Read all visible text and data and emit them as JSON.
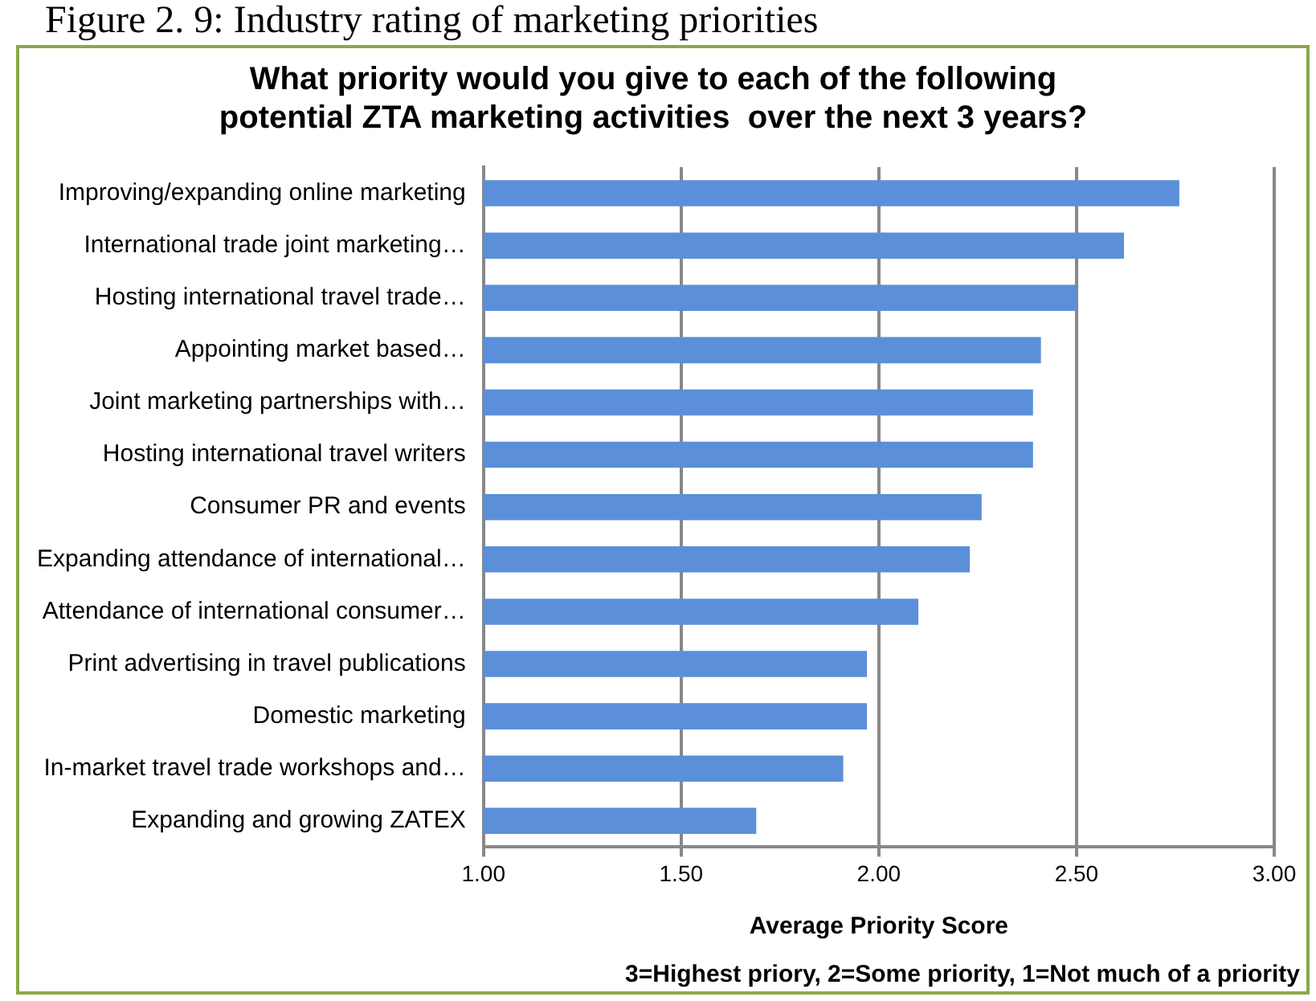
{
  "chart_data": {
    "type": "bar",
    "orientation": "horizontal",
    "title": "What priority would you give to each of the following potential ZTA marketing activities  over the next 3 years?",
    "xlabel": "Average Priority Score",
    "annotations": [
      "Figure 2. 9: Industry rating of marketing priorities",
      "3=Highest priory, 2=Some priority, 1=Not much of a priority"
    ],
    "categories": [
      "Improving/expanding online marketing",
      "International trade joint marketing…",
      "Hosting international travel trade…",
      "Appointing market based…",
      "Joint marketing partnerships with…",
      "Hosting international travel writers",
      "Consumer PR and events",
      "Expanding attendance of international…",
      "Attendance of international consumer…",
      "Print advertising in travel publications",
      "Domestic marketing",
      "In-market travel trade workshops and…",
      "Expanding and growing ZATEX"
    ],
    "values": [
      2.76,
      2.62,
      2.5,
      2.41,
      2.39,
      2.39,
      2.26,
      2.23,
      2.1,
      1.97,
      1.97,
      1.91,
      1.69
    ],
    "color": "#5b8fd9",
    "xlim": [
      1,
      3
    ],
    "xticks": [
      {
        "value": 1,
        "label": "1.00"
      },
      {
        "value": 1.5,
        "label": "1.50"
      },
      {
        "value": 2,
        "label": "2.00"
      },
      {
        "value": 2.5,
        "label": "2.50"
      },
      {
        "value": 3,
        "label": "3.00"
      }
    ],
    "grid": "x",
    "legend": false
  }
}
